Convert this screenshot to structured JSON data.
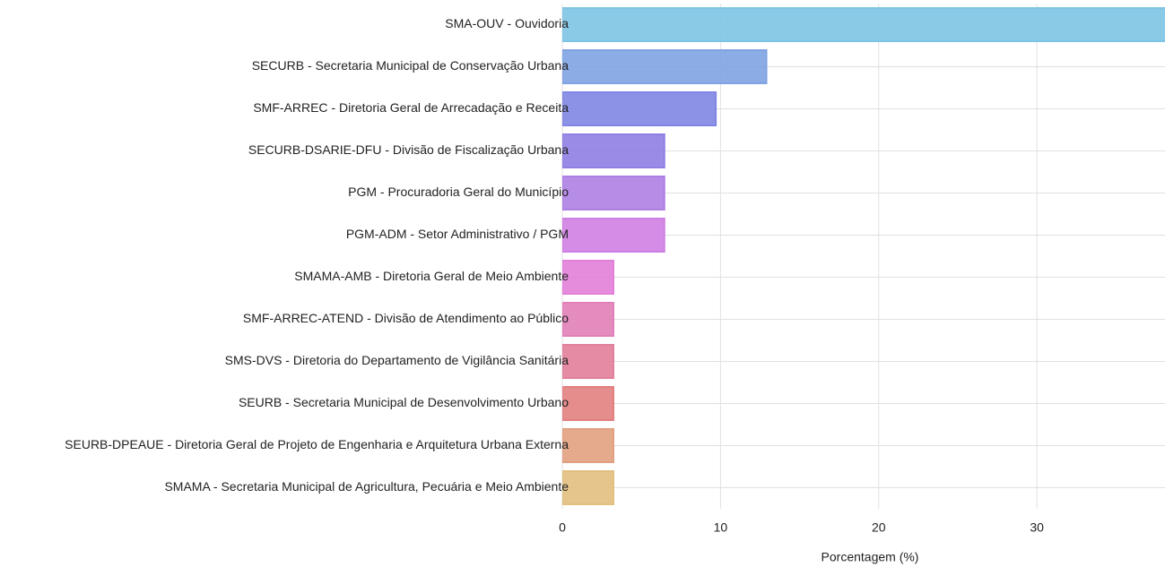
{
  "chart_data": {
    "type": "barh",
    "categories": [
      "SMA-OUV - Ouvidoria",
      "SECURB - Secretaria Municipal de Conservação Urbana",
      "SMF-ARREC - Diretoria Geral de Arrecadação e Receita",
      "SECURB-DSARIE-DFU - Divisão de Fiscalização Urbana",
      "PGM - Procuradoria Geral do Município",
      "PGM-ADM - Setor Administrativo / PGM",
      "SMAMA-AMB - Diretoria Geral de Meio Ambiente",
      "SMF-ARREC-ATEND - Divisão de Atendimento ao Público",
      "SMS-DVS - Diretoria do Departamento de Vigilância Sanitária",
      "SEURB - Secretaria Municipal de Desenvolvimento Urbano",
      "SEURB-DPEAUE - Diretoria Geral de Projeto de Engenharia e Arquitetura Urbana Externa",
      "SMAMA - Secretaria Municipal de Agricultura, Pecuária e Meio Ambiente"
    ],
    "values": [
      38.7,
      12.9,
      9.7,
      6.45,
      6.45,
      6.45,
      3.23,
      3.23,
      3.23,
      3.23,
      3.23,
      3.23
    ],
    "colors": [
      "#7ec4e4",
      "#7fa3e3",
      "#7f86e3",
      "#8f7fe3",
      "#ad7fe3",
      "#cf7fe3",
      "#e27fd9",
      "#e27fb8",
      "#e27f9a",
      "#e27f7f",
      "#e2a07f",
      "#e2bf7f"
    ],
    "xlabel": "Porcentagem (%)",
    "xlim": [
      0,
      38.1
    ],
    "xticks": [
      0,
      10,
      20,
      30
    ],
    "grid": true
  }
}
